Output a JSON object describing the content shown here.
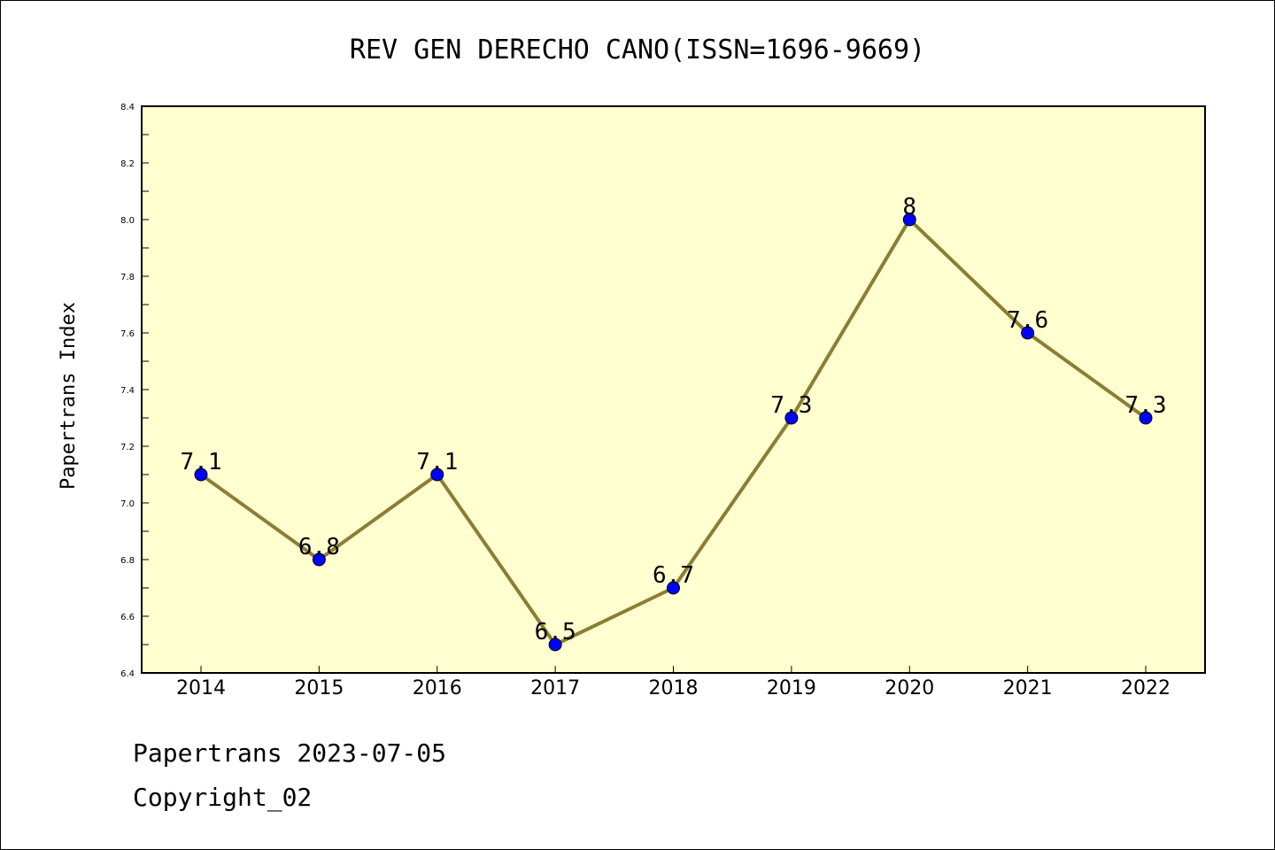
{
  "chart_data": {
    "type": "line",
    "title": "REV GEN DERECHO CANO(ISSN=1696-9669)",
    "xlabel": "",
    "ylabel": "Papertrans Index",
    "categories": [
      "2014",
      "2015",
      "2016",
      "2017",
      "2018",
      "2019",
      "2020",
      "2021",
      "2022"
    ],
    "series": [
      {
        "values": [
          7.1,
          6.8,
          7.1,
          6.5,
          6.7,
          7.3,
          8.0,
          7.6,
          7.3
        ],
        "labels": [
          "7.1",
          "6.8",
          "7.1",
          "6.5",
          "6.7",
          "7.3",
          "8",
          "7.6",
          "7.3"
        ]
      }
    ],
    "ylim": [
      6.4,
      8.4
    ],
    "yticks": [
      "6.4",
      "6.6",
      "6.8",
      "7.0",
      "7.2",
      "7.4",
      "7.6",
      "7.8",
      "8.0",
      "8.2",
      "8.4"
    ],
    "grid": false,
    "colors": {
      "plot_background": "#ffffd0",
      "line": "#8b7d35",
      "marker": "#0000ff"
    }
  },
  "footer": {
    "line1": "Papertrans 2023-07-05",
    "line2": "Copyright_02"
  }
}
